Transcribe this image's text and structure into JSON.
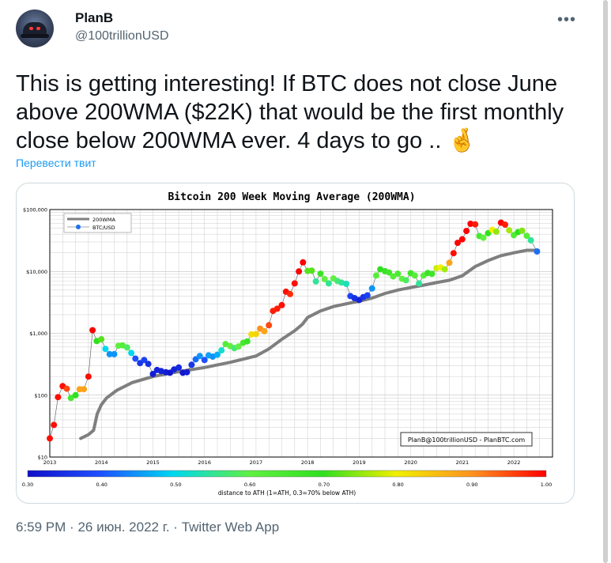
{
  "user": {
    "name": "PlanB",
    "handle": "@100trillionUSD"
  },
  "tweet": {
    "text": "This is getting interesting! If BTC does not close June above 200WMA ($22K) that would be the first monthly close below 200WMA ever. 4 days to go .. 🤞",
    "translate_label": "Перевести твит",
    "time": "6:59 PM",
    "date": "26 июн. 2022 г.",
    "separator": "·",
    "app": "Twitter Web App"
  },
  "colors": {
    "link": "#1d9bf0",
    "wma_line": "#7f7f7f",
    "btc_marker": "#1e6ff0"
  },
  "icons": {
    "more": "more-dots-icon",
    "avatar": "avatar-cap-icon"
  },
  "chart_data": {
    "type": "scatter",
    "title": "Bitcoin 200 Week Moving Average (200WMA)",
    "xlabel": "",
    "ylabel": "",
    "log_y": true,
    "ylim": [
      10,
      100000
    ],
    "xlim": [
      2013,
      2022.75
    ],
    "y_ticks": [
      "$10",
      "$100",
      "$1,000",
      "$10,000",
      "$100,000"
    ],
    "x_ticks": [
      "2013",
      "2014",
      "2015",
      "2016",
      "2017",
      "2018",
      "2019",
      "2020",
      "2021",
      "2022"
    ],
    "legend": {
      "position": "top-left",
      "entries": [
        "200WMA",
        "BTC/USD"
      ]
    },
    "credit": "PlanB@100trillionUSD - PlanBTC.com",
    "colorbar": {
      "label": "distance to ATH (1=ATH, 0.3=70% below ATH)",
      "ticks": [
        "0.30",
        "0.40",
        "0.50",
        "0.60",
        "0.70",
        "0.80",
        "0.90",
        "1.00"
      ]
    },
    "wma_series": {
      "name": "200WMA",
      "x": [
        2013.6,
        2013.75,
        2013.85,
        2013.92,
        2014.0,
        2014.1,
        2014.3,
        2014.6,
        2015.0,
        2015.5,
        2016.0,
        2016.5,
        2017.0,
        2017.25,
        2017.5,
        2017.75,
        2017.9,
        2018.0,
        2018.25,
        2018.5,
        2018.75,
        2019.0,
        2019.25,
        2019.5,
        2019.75,
        2020.0,
        2020.25,
        2020.5,
        2020.75,
        2021.0,
        2021.25,
        2021.5,
        2021.75,
        2022.0,
        2022.25,
        2022.45
      ],
      "y": [
        20,
        23,
        27,
        50,
        70,
        90,
        120,
        160,
        200,
        240,
        280,
        340,
        430,
        560,
        800,
        1100,
        1400,
        1800,
        2300,
        2700,
        3000,
        3300,
        3700,
        4400,
        5000,
        5500,
        6000,
        6600,
        7200,
        8500,
        12000,
        15000,
        18000,
        20000,
        22000,
        22000
      ]
    },
    "btc_series": {
      "name": "BTC/USD",
      "points": [
        {
          "x": 2013.0,
          "y": 20,
          "d": 0.99
        },
        {
          "x": 2013.08,
          "y": 33,
          "d": 0.99
        },
        {
          "x": 2013.16,
          "y": 93,
          "d": 0.99
        },
        {
          "x": 2013.25,
          "y": 140,
          "d": 0.99
        },
        {
          "x": 2013.33,
          "y": 127,
          "d": 0.95
        },
        {
          "x": 2013.41,
          "y": 90,
          "d": 0.65
        },
        {
          "x": 2013.5,
          "y": 100,
          "d": 0.7
        },
        {
          "x": 2013.58,
          "y": 125,
          "d": 0.88
        },
        {
          "x": 2013.66,
          "y": 125,
          "d": 0.88
        },
        {
          "x": 2013.75,
          "y": 200,
          "d": 0.99
        },
        {
          "x": 2013.83,
          "y": 1120,
          "d": 1.0
        },
        {
          "x": 2013.91,
          "y": 750,
          "d": 0.7
        },
        {
          "x": 2014.0,
          "y": 800,
          "d": 0.72
        },
        {
          "x": 2014.08,
          "y": 560,
          "d": 0.5
        },
        {
          "x": 2014.16,
          "y": 460,
          "d": 0.45
        },
        {
          "x": 2014.25,
          "y": 460,
          "d": 0.45
        },
        {
          "x": 2014.33,
          "y": 630,
          "d": 0.6
        },
        {
          "x": 2014.41,
          "y": 640,
          "d": 0.62
        },
        {
          "x": 2014.5,
          "y": 590,
          "d": 0.58
        },
        {
          "x": 2014.58,
          "y": 480,
          "d": 0.5
        },
        {
          "x": 2014.66,
          "y": 390,
          "d": 0.4
        },
        {
          "x": 2014.75,
          "y": 330,
          "d": 0.36
        },
        {
          "x": 2014.83,
          "y": 370,
          "d": 0.38
        },
        {
          "x": 2014.91,
          "y": 320,
          "d": 0.35
        },
        {
          "x": 2015.0,
          "y": 220,
          "d": 0.32
        },
        {
          "x": 2015.08,
          "y": 255,
          "d": 0.33
        },
        {
          "x": 2015.16,
          "y": 245,
          "d": 0.33
        },
        {
          "x": 2015.25,
          "y": 235,
          "d": 0.32
        },
        {
          "x": 2015.33,
          "y": 230,
          "d": 0.31
        },
        {
          "x": 2015.41,
          "y": 260,
          "d": 0.33
        },
        {
          "x": 2015.5,
          "y": 280,
          "d": 0.34
        },
        {
          "x": 2015.58,
          "y": 230,
          "d": 0.31
        },
        {
          "x": 2015.66,
          "y": 235,
          "d": 0.32
        },
        {
          "x": 2015.75,
          "y": 310,
          "d": 0.36
        },
        {
          "x": 2015.83,
          "y": 380,
          "d": 0.42
        },
        {
          "x": 2015.91,
          "y": 430,
          "d": 0.45
        },
        {
          "x": 2016.0,
          "y": 370,
          "d": 0.4
        },
        {
          "x": 2016.08,
          "y": 440,
          "d": 0.46
        },
        {
          "x": 2016.16,
          "y": 420,
          "d": 0.45
        },
        {
          "x": 2016.25,
          "y": 450,
          "d": 0.47
        },
        {
          "x": 2016.33,
          "y": 530,
          "d": 0.52
        },
        {
          "x": 2016.41,
          "y": 670,
          "d": 0.62
        },
        {
          "x": 2016.5,
          "y": 620,
          "d": 0.6
        },
        {
          "x": 2016.58,
          "y": 575,
          "d": 0.57
        },
        {
          "x": 2016.66,
          "y": 610,
          "d": 0.6
        },
        {
          "x": 2016.75,
          "y": 700,
          "d": 0.65
        },
        {
          "x": 2016.83,
          "y": 740,
          "d": 0.68
        },
        {
          "x": 2016.91,
          "y": 960,
          "d": 0.82
        },
        {
          "x": 2017.0,
          "y": 970,
          "d": 0.83
        },
        {
          "x": 2017.08,
          "y": 1190,
          "d": 0.9
        },
        {
          "x": 2017.16,
          "y": 1080,
          "d": 0.88
        },
        {
          "x": 2017.25,
          "y": 1350,
          "d": 0.95
        },
        {
          "x": 2017.33,
          "y": 2300,
          "d": 0.98
        },
        {
          "x": 2017.41,
          "y": 2500,
          "d": 0.98
        },
        {
          "x": 2017.5,
          "y": 2850,
          "d": 0.99
        },
        {
          "x": 2017.58,
          "y": 4700,
          "d": 0.99
        },
        {
          "x": 2017.66,
          "y": 4300,
          "d": 0.97
        },
        {
          "x": 2017.75,
          "y": 6400,
          "d": 0.99
        },
        {
          "x": 2017.83,
          "y": 10000,
          "d": 1.0
        },
        {
          "x": 2017.91,
          "y": 14000,
          "d": 1.0
        },
        {
          "x": 2018.0,
          "y": 10200,
          "d": 0.72
        },
        {
          "x": 2018.08,
          "y": 10300,
          "d": 0.72
        },
        {
          "x": 2018.16,
          "y": 6900,
          "d": 0.55
        },
        {
          "x": 2018.25,
          "y": 9200,
          "d": 0.68
        },
        {
          "x": 2018.33,
          "y": 7500,
          "d": 0.6
        },
        {
          "x": 2018.41,
          "y": 6400,
          "d": 0.55
        },
        {
          "x": 2018.5,
          "y": 7700,
          "d": 0.6
        },
        {
          "x": 2018.58,
          "y": 7000,
          "d": 0.57
        },
        {
          "x": 2018.66,
          "y": 6600,
          "d": 0.55
        },
        {
          "x": 2018.75,
          "y": 6300,
          "d": 0.53
        },
        {
          "x": 2018.83,
          "y": 4000,
          "d": 0.38
        },
        {
          "x": 2018.91,
          "y": 3700,
          "d": 0.35
        },
        {
          "x": 2019.0,
          "y": 3450,
          "d": 0.33
        },
        {
          "x": 2019.08,
          "y": 3850,
          "d": 0.36
        },
        {
          "x": 2019.16,
          "y": 4100,
          "d": 0.38
        },
        {
          "x": 2019.25,
          "y": 5300,
          "d": 0.45
        },
        {
          "x": 2019.33,
          "y": 8600,
          "d": 0.62
        },
        {
          "x": 2019.41,
          "y": 10800,
          "d": 0.7
        },
        {
          "x": 2019.5,
          "y": 10100,
          "d": 0.68
        },
        {
          "x": 2019.58,
          "y": 9600,
          "d": 0.66
        },
        {
          "x": 2019.66,
          "y": 8300,
          "d": 0.62
        },
        {
          "x": 2019.75,
          "y": 9200,
          "d": 0.64
        },
        {
          "x": 2019.83,
          "y": 7600,
          "d": 0.6
        },
        {
          "x": 2019.91,
          "y": 7200,
          "d": 0.58
        },
        {
          "x": 2020.0,
          "y": 9350,
          "d": 0.67
        },
        {
          "x": 2020.08,
          "y": 8600,
          "d": 0.62
        },
        {
          "x": 2020.16,
          "y": 6400,
          "d": 0.55
        },
        {
          "x": 2020.25,
          "y": 8600,
          "d": 0.62
        },
        {
          "x": 2020.33,
          "y": 9450,
          "d": 0.68
        },
        {
          "x": 2020.41,
          "y": 9150,
          "d": 0.67
        },
        {
          "x": 2020.5,
          "y": 11300,
          "d": 0.78
        },
        {
          "x": 2020.58,
          "y": 11600,
          "d": 0.8
        },
        {
          "x": 2020.66,
          "y": 10800,
          "d": 0.76
        },
        {
          "x": 2020.75,
          "y": 13800,
          "d": 0.88
        },
        {
          "x": 2020.83,
          "y": 19700,
          "d": 0.99
        },
        {
          "x": 2020.91,
          "y": 29000,
          "d": 1.0
        },
        {
          "x": 2021.0,
          "y": 33100,
          "d": 1.0
        },
        {
          "x": 2021.08,
          "y": 45100,
          "d": 1.0
        },
        {
          "x": 2021.16,
          "y": 58800,
          "d": 1.0
        },
        {
          "x": 2021.25,
          "y": 57700,
          "d": 0.98
        },
        {
          "x": 2021.33,
          "y": 37300,
          "d": 0.65
        },
        {
          "x": 2021.41,
          "y": 35000,
          "d": 0.6
        },
        {
          "x": 2021.5,
          "y": 41500,
          "d": 0.7
        },
        {
          "x": 2021.58,
          "y": 47100,
          "d": 0.8
        },
        {
          "x": 2021.66,
          "y": 43800,
          "d": 0.75
        },
        {
          "x": 2021.75,
          "y": 61300,
          "d": 1.0
        },
        {
          "x": 2021.83,
          "y": 57000,
          "d": 0.98
        },
        {
          "x": 2021.91,
          "y": 46300,
          "d": 0.76
        },
        {
          "x": 2022.0,
          "y": 38500,
          "d": 0.63
        },
        {
          "x": 2022.08,
          "y": 43200,
          "d": 0.7
        },
        {
          "x": 2022.16,
          "y": 45500,
          "d": 0.74
        },
        {
          "x": 2022.25,
          "y": 37700,
          "d": 0.62
        },
        {
          "x": 2022.33,
          "y": 31800,
          "d": 0.55
        },
        {
          "x": 2022.45,
          "y": 21000,
          "d": 0.33
        }
      ]
    }
  }
}
